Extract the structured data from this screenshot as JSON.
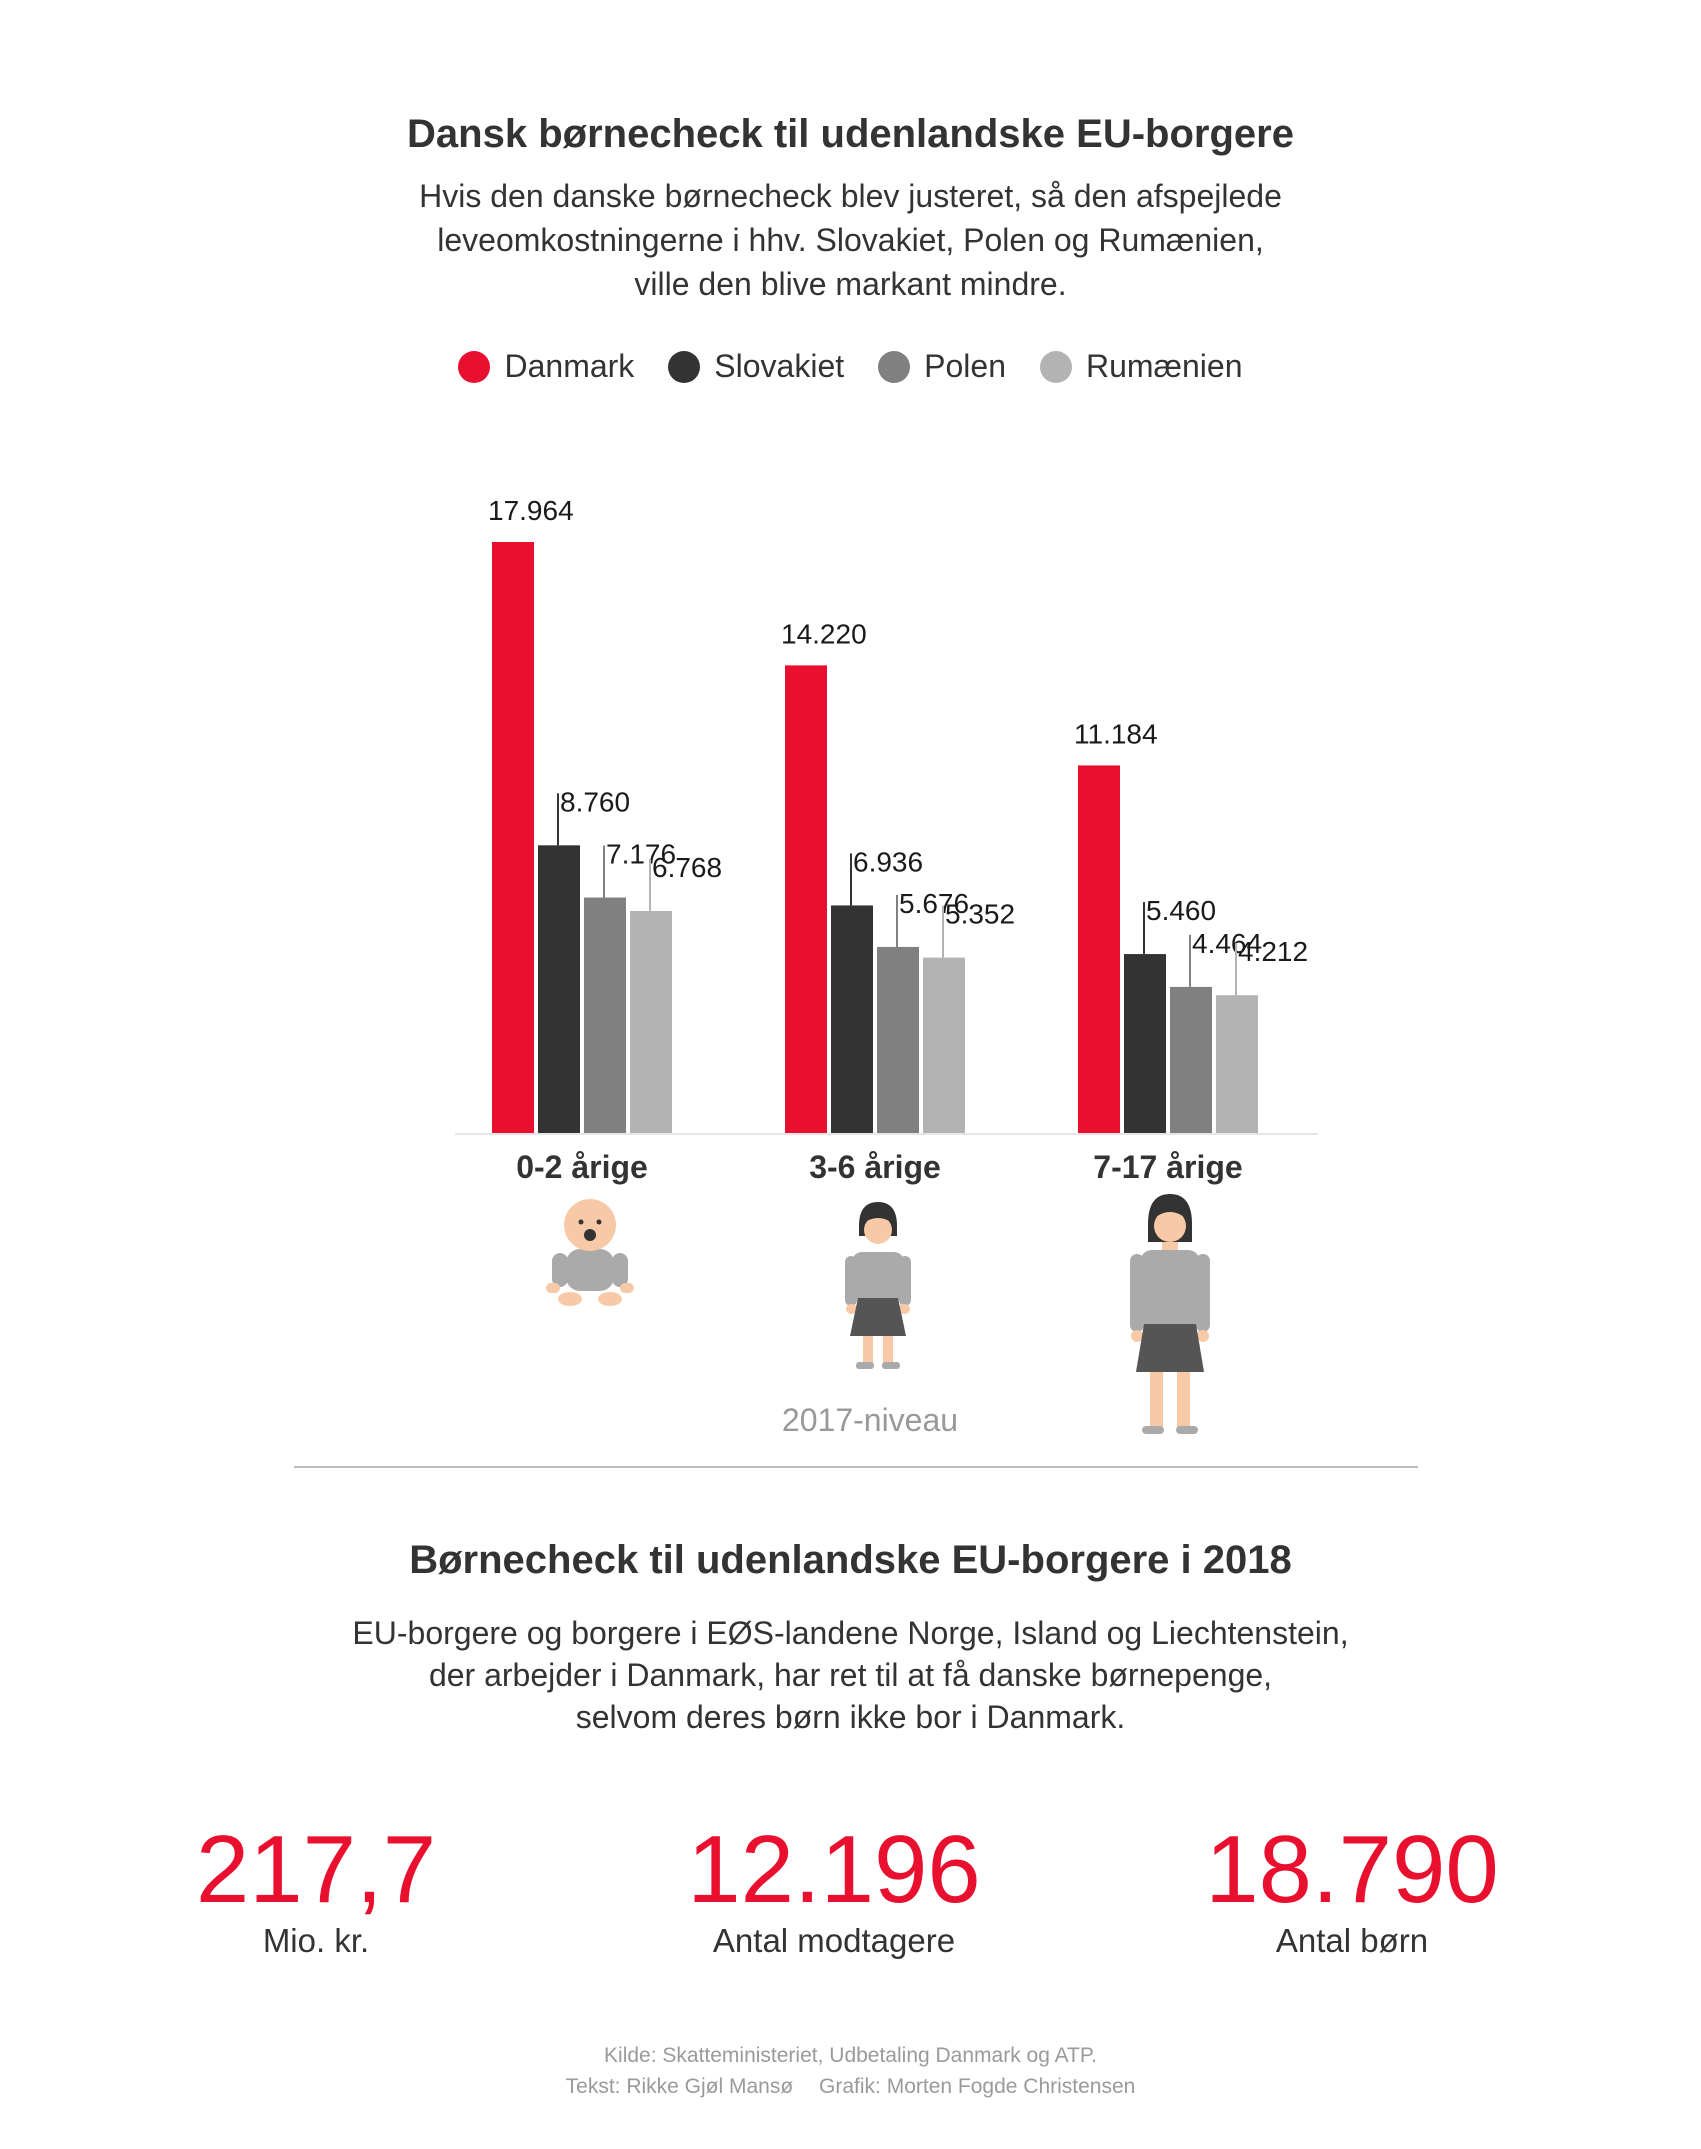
{
  "header": {
    "title": "Dansk børnecheck til udenlandske EU-borgere",
    "subtitle_lines": [
      "Hvis den danske børnecheck blev justeret, så den afspejlede",
      "leveomkostningerne i hhv. Slovakiet, Polen og Rumænien,",
      "ville den blive markant mindre."
    ]
  },
  "chart_data": {
    "type": "bar",
    "title": "Dansk børnecheck til udenlandske EU-borgere",
    "categories": [
      "0-2 årige",
      "3-6 årige",
      "7-17 årige"
    ],
    "series": [
      {
        "name": "Danmark",
        "color": "#e8102e",
        "values": [
          17964,
          14220,
          11184
        ],
        "labels": [
          "17.964",
          "14.220",
          "11.184"
        ]
      },
      {
        "name": "Slovakiet",
        "color": "#333333",
        "values": [
          8760,
          6936,
          5460
        ],
        "labels": [
          "8.760",
          "6.936",
          "5.460"
        ]
      },
      {
        "name": "Polen",
        "color": "#808080",
        "values": [
          7176,
          5676,
          4464
        ],
        "labels": [
          "7.176",
          "5.676",
          "4.464"
        ]
      },
      {
        "name": "Rumænien",
        "color": "#b3b3b3",
        "values": [
          6768,
          5352,
          4212
        ],
        "labels": [
          "6.768",
          "5.352",
          "4.212"
        ]
      }
    ],
    "ylim": [
      0,
      17964
    ],
    "grid": false,
    "legend": "top-center",
    "note": "2017-niveau"
  },
  "icons": [
    "baby-icon",
    "child-icon",
    "teen-icon"
  ],
  "section2": {
    "title": "Børnecheck til udenlandske EU-borgere i 2018",
    "intro_lines": [
      "EU-borgere og borgere i EØS-landene Norge, Island og Liechtenstein,",
      "der arbejder i Danmark, har ret til at få danske børnepenge,",
      "selvom deres børn ikke bor i Danmark."
    ],
    "stats": [
      {
        "value": "217,7",
        "label": "Mio. kr."
      },
      {
        "value": "12.196",
        "label": "Antal modtagere"
      },
      {
        "value": "18.790",
        "label": "Antal børn"
      }
    ]
  },
  "footer": {
    "source": "Kilde: Skatteministeriet, Udbetaling Danmark og ATP.",
    "text_credit": "Tekst: Rikke Gjøl Mansø",
    "graphic_credit": "Grafik: Morten Fogde Christensen"
  },
  "colors": {
    "accent": "#e8102e",
    "dark": "#333333",
    "mid": "#808080",
    "light": "#b3b3b3"
  }
}
